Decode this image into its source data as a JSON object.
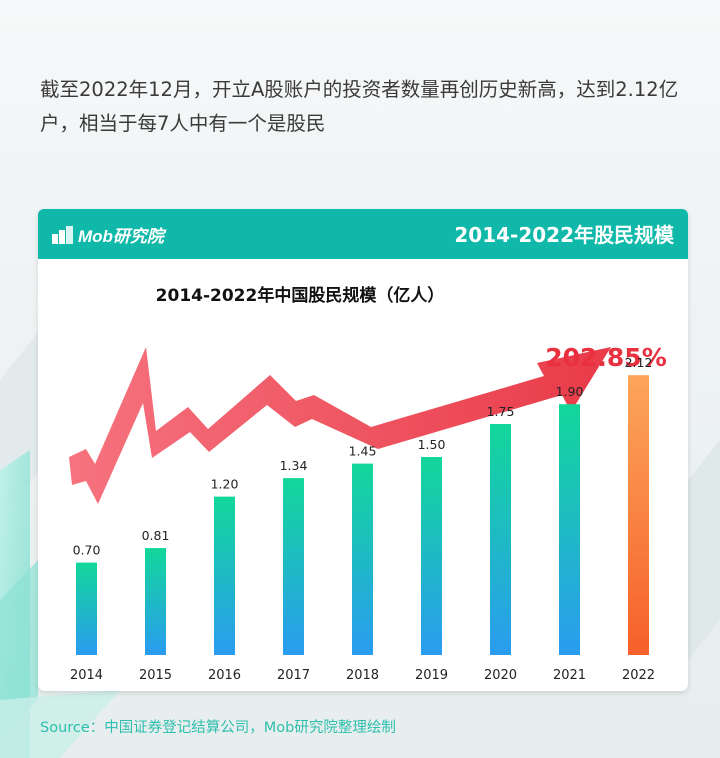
{
  "headline": "截至2022年12月，开立A股账户的投资者数量再创历史新高，达到2.12亿户，相当于每7人中有一个是股民",
  "card": {
    "brand": "Mob研究院",
    "title": "2014-2022年股民规模"
  },
  "source": "Source：中国证券登记结算公司，Mob研究院整理绘制",
  "colors": {
    "brand_teal": "#0fb8a8",
    "bar_green": "#13d79a",
    "bar_blue": "#2a9cf0",
    "bar_last_top": "#fca65a",
    "bar_last_bottom": "#f6602a",
    "arrow_red": "#ee3a4a"
  },
  "chart_data": {
    "type": "bar",
    "title": "2014-2022年中国股民规模（亿人）",
    "categories": [
      "2014",
      "2015",
      "2016",
      "2017",
      "2018",
      "2019",
      "2020",
      "2021",
      "2022"
    ],
    "values": [
      0.7,
      0.81,
      1.2,
      1.34,
      1.45,
      1.5,
      1.75,
      1.9,
      2.12
    ],
    "value_labels": [
      "0.70",
      "0.81",
      "1.20",
      "1.34",
      "1.45",
      "1.50",
      "1.75",
      "1.90",
      "2.12"
    ],
    "ylim": [
      0,
      2.5
    ],
    "grid": false,
    "highlight_index": 8,
    "annotation": "202.85%",
    "annotation_icon": "rising-arrow"
  }
}
